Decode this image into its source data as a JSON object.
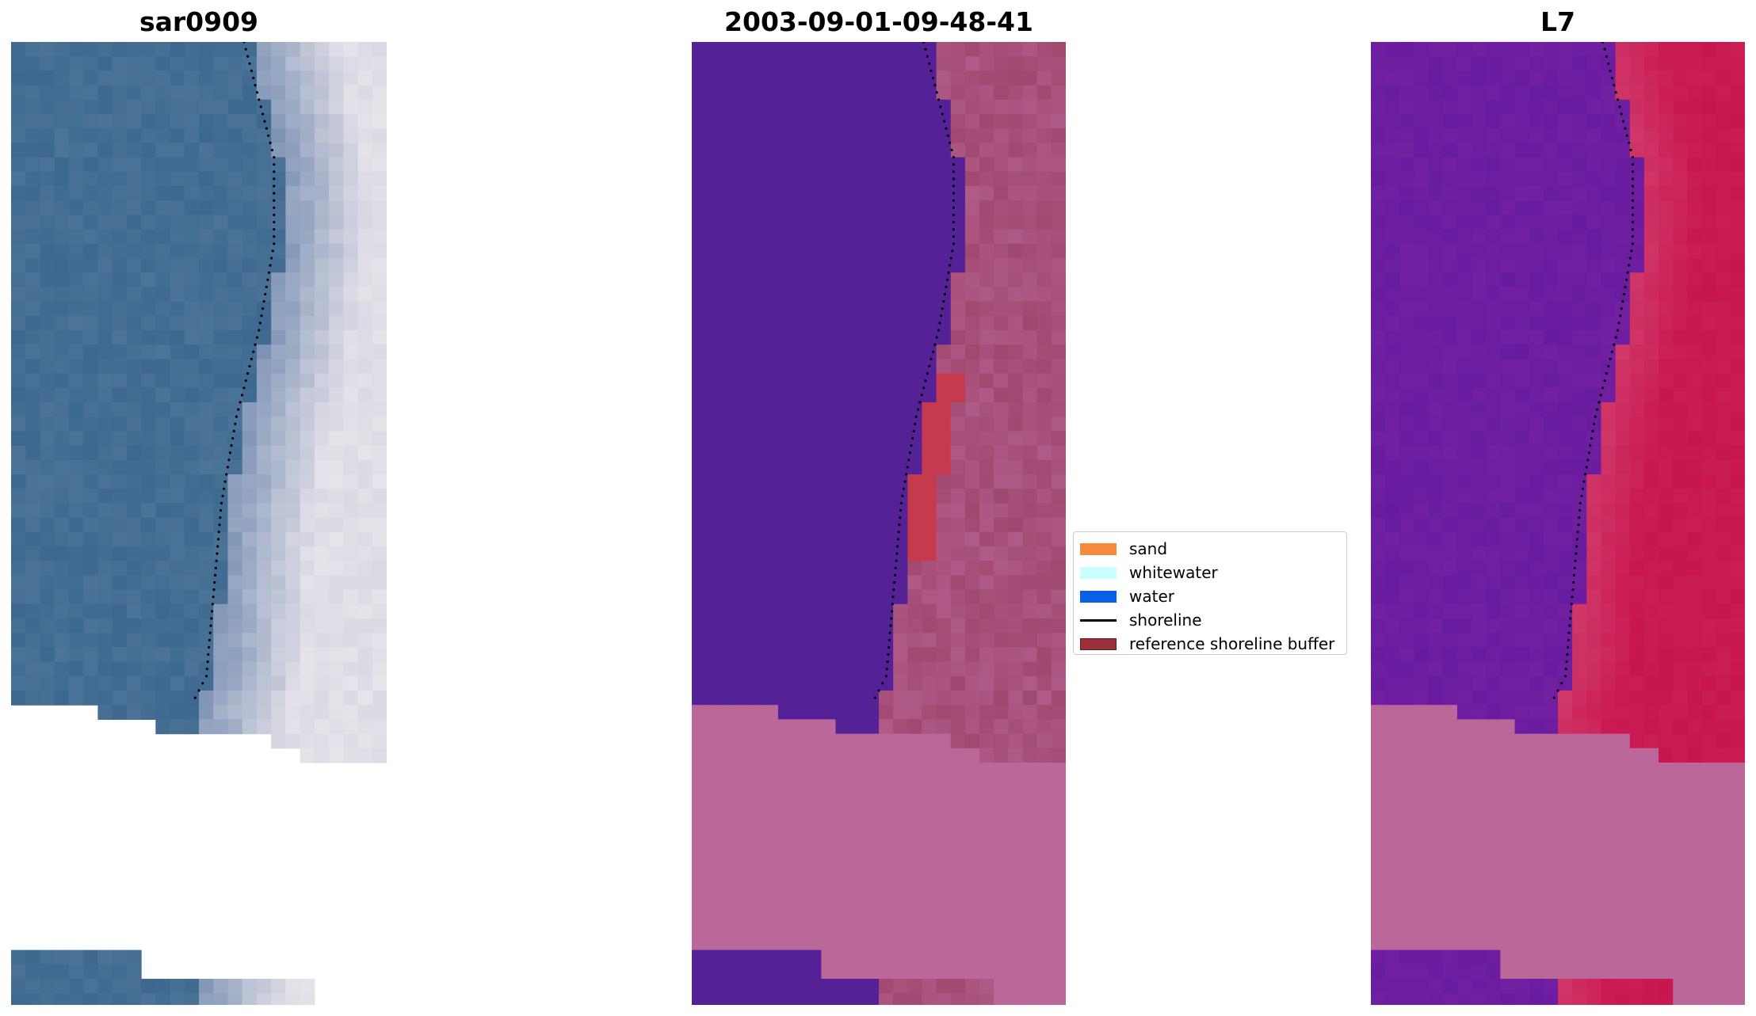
{
  "panels": [
    {
      "title": "sar0909"
    },
    {
      "title": "2003-09-01-09-48-41"
    },
    {
      "title": "L7"
    }
  ],
  "colors": {
    "rgb_water": "#456e93",
    "rgb_land": "#d4d0dc",
    "class_water": "#552196",
    "class_land": "#bb6698",
    "class_buffer": "#c53a4d",
    "index_water": "#7020a0",
    "index_land": "#c8164e",
    "nodata_fill": "#bc6799"
  },
  "legend": {
    "items": [
      {
        "label": "sand",
        "color": "#f58a3c",
        "kind": "patch"
      },
      {
        "label": "whitewater",
        "color": "#c8ffff",
        "kind": "patch"
      },
      {
        "label": "water",
        "color": "#0a5fe8",
        "kind": "patch"
      },
      {
        "label": "shoreline",
        "color": "#000000",
        "kind": "line"
      },
      {
        "label": "reference shoreline buffer",
        "color": "#9a3038",
        "kind": "patch"
      }
    ]
  }
}
